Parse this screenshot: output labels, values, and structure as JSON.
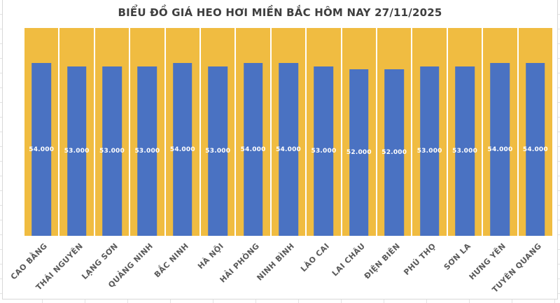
{
  "chart_data": {
    "type": "bar",
    "title": "BIỂU ĐỒ GIÁ HEO HƠI MIỀN BẮC HÔM NAY 27/11/2025",
    "categories": [
      "CAO BẰNG",
      "THÁI NGUYÊN",
      "LẠNG SƠN",
      "QUẢNG NINH",
      "BẮC NINH",
      "HÀ NỘI",
      "HẢI PHÒNG",
      "NINH BÌNH",
      "LÀO CAI",
      "LAI CHÂU",
      "ĐIỆN BIÊN",
      "PHÚ THỌ",
      "SƠN LA",
      "HƯNG YÊN",
      "TUYÊN QUANG"
    ],
    "values": [
      54000,
      53000,
      53000,
      53000,
      54000,
      53000,
      54000,
      54000,
      53000,
      52000,
      52000,
      53000,
      53000,
      54000,
      54000
    ],
    "value_labels": [
      "54.000",
      "53.000",
      "53.000",
      "53.000",
      "54.000",
      "53.000",
      "54.000",
      "54.000",
      "53.000",
      "52.000",
      "52.000",
      "53.000",
      "53.000",
      "54.000",
      "54.000"
    ],
    "xlabel": "",
    "ylabel": "",
    "ylim": [
      0,
      65000
    ],
    "grid": false,
    "legend": "none",
    "bar_color": "#4a72c2",
    "background_bar_color": "#f0bc41",
    "value_label_color": "#ffffff",
    "title_color": "#3f3f3f",
    "axis_label_color": "#595959"
  }
}
